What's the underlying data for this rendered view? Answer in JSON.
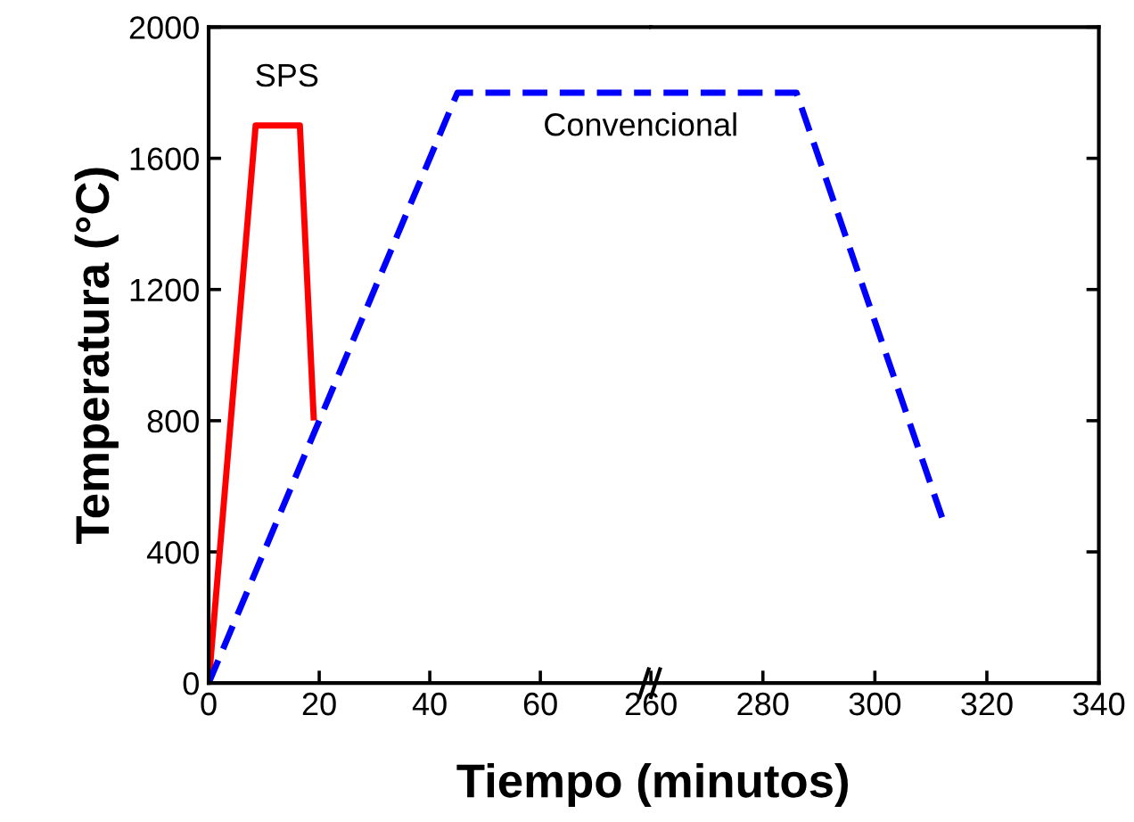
{
  "chart_data": [
    {
      "type": "line",
      "xlabel": "Tiempo (minutos)",
      "ylabel": "Temperatura (°C)",
      "xlim": [
        0,
        80
      ],
      "xticks": [
        0,
        20,
        40,
        60
      ],
      "ylim": [
        0,
        2000
      ],
      "yticks": [
        0,
        400,
        800,
        1200,
        1600,
        2000
      ],
      "grid": false,
      "legend": false,
      "series": [
        {
          "color": "#ff0000",
          "line_style": "solid",
          "x": [
            0,
            8.5,
            16.5,
            19
          ],
          "values": [
            0,
            1700,
            1700,
            810
          ]
        },
        {
          "color": "#0000ff",
          "line_style": "dashed",
          "x": [
            0,
            45,
            80
          ],
          "values": [
            0,
            1800,
            1800
          ]
        }
      ],
      "annotations": [
        "SPS",
        "Convencional"
      ]
    },
    {
      "type": "line",
      "xlim": [
        260,
        340
      ],
      "xticks": [
        260,
        280,
        300,
        320,
        340
      ],
      "ylim": [
        0,
        2000
      ],
      "tick_labels": "x",
      "grid": false,
      "legend": false,
      "series": [
        {
          "color": "#0000ff",
          "line_style": "dashed",
          "x": [
            260,
            286,
            312
          ],
          "values": [
            1800,
            1800,
            505
          ]
        }
      ]
    }
  ]
}
